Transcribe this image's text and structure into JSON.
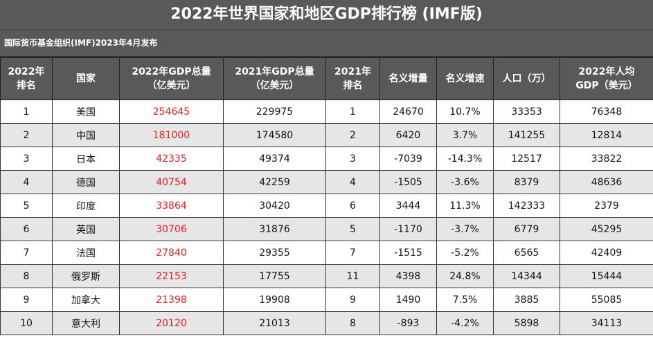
{
  "header": {
    "title": "2022年世界国家和地区GDP排行榜 (IMF版)",
    "subtitle": "国际货币基金组织(IMF)2023年4月发布"
  },
  "table": {
    "columns": [
      "2022年\n排名",
      "国家",
      "2022年GDP总量\n（亿美元）",
      "2021年GDP总量\n（亿美元）",
      "2021年\n排名",
      "名义增量",
      "名义增速",
      "人口（万）",
      "2022年人均\nGDP（美元）"
    ],
    "rows": [
      [
        "1",
        "美国",
        "254645",
        "229975",
        "1",
        "24670",
        "10.7%",
        "33353",
        "76348"
      ],
      [
        "2",
        "中国",
        "181000",
        "174580",
        "2",
        "6420",
        "3.7%",
        "141255",
        "12814"
      ],
      [
        "3",
        "日本",
        "42335",
        "49374",
        "3",
        "-7039",
        "-14.3%",
        "12517",
        "33822"
      ],
      [
        "4",
        "德国",
        "40754",
        "42259",
        "4",
        "-1505",
        "-3.6%",
        "8379",
        "48636"
      ],
      [
        "5",
        "印度",
        "33864",
        "30420",
        "6",
        "3444",
        "11.3%",
        "142333",
        "2379"
      ],
      [
        "6",
        "英国",
        "30706",
        "31876",
        "5",
        "-1170",
        "-3.7%",
        "6779",
        "45295"
      ],
      [
        "7",
        "法国",
        "27840",
        "29355",
        "7",
        "-1515",
        "-5.2%",
        "6565",
        "42409"
      ],
      [
        "8",
        "俄罗斯",
        "22153",
        "17755",
        "11",
        "4398",
        "24.8%",
        "14344",
        "15444"
      ],
      [
        "9",
        "加拿大",
        "21398",
        "19908",
        "9",
        "1490",
        "7.5%",
        "3885",
        "55085"
      ],
      [
        "10",
        "意大利",
        "20120",
        "21013",
        "8",
        "-893",
        "-4.2%",
        "5898",
        "34113"
      ]
    ]
  }
}
